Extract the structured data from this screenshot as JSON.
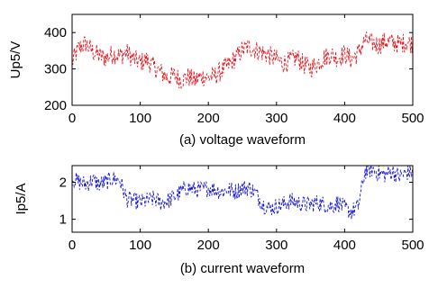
{
  "chart_data": [
    {
      "type": "line",
      "title": "",
      "caption": "(a) voltage waveform",
      "xlabel": "",
      "ylabel": "Up5/V",
      "xlim": [
        0,
        500
      ],
      "ylim": [
        200,
        450
      ],
      "xticks": [
        0,
        100,
        200,
        300,
        400,
        500
      ],
      "yticks": [
        200,
        300,
        400
      ],
      "grid": false,
      "color": "#e8141b",
      "series": [
        {
          "x": [
            0,
            10,
            20,
            30,
            40,
            50,
            60,
            70,
            80,
            90,
            100,
            110,
            120,
            130,
            140,
            150,
            160,
            170,
            180,
            190,
            200,
            210,
            220,
            230,
            240,
            250,
            260,
            270,
            280,
            290,
            300,
            310,
            320,
            330,
            340,
            350,
            360,
            370,
            380,
            390,
            400,
            410,
            420,
            430,
            440,
            450,
            460,
            470,
            480,
            490,
            500
          ],
          "values": [
            318,
            358,
            370,
            348,
            336,
            330,
            342,
            336,
            345,
            328,
            318,
            325,
            305,
            292,
            276,
            282,
            270,
            278,
            268,
            280,
            276,
            282,
            296,
            312,
            330,
            352,
            362,
            352,
            345,
            336,
            326,
            316,
            322,
            332,
            312,
            302,
            315,
            332,
            340,
            330,
            342,
            325,
            345,
            378,
            372,
            366,
            376,
            372,
            368,
            374,
            370
          ]
        }
      ]
    },
    {
      "type": "line",
      "title": "",
      "caption": "(b) current waveform",
      "xlabel": "",
      "ylabel": "Ip5/A",
      "xlim": [
        0,
        500
      ],
      "ylim": [
        0.65,
        2.45
      ],
      "xticks": [
        0,
        100,
        200,
        300,
        400,
        500
      ],
      "yticks": [
        1,
        2
      ],
      "grid": false,
      "color": "#1515d6",
      "series": [
        {
          "x": [
            0,
            10,
            20,
            30,
            40,
            50,
            60,
            70,
            80,
            90,
            100,
            110,
            120,
            130,
            140,
            150,
            160,
            170,
            180,
            190,
            200,
            210,
            220,
            230,
            240,
            250,
            260,
            270,
            280,
            290,
            300,
            310,
            320,
            330,
            340,
            350,
            360,
            370,
            380,
            390,
            400,
            410,
            420,
            430,
            440,
            450,
            460,
            470,
            480,
            490,
            500
          ],
          "values": [
            2.1,
            2.0,
            1.95,
            2.05,
            1.95,
            2.0,
            2.1,
            2.05,
            1.55,
            1.5,
            1.45,
            1.5,
            1.55,
            1.45,
            1.5,
            1.6,
            1.75,
            1.85,
            1.8,
            1.8,
            1.85,
            1.8,
            1.75,
            1.8,
            1.75,
            1.85,
            1.85,
            1.7,
            1.4,
            1.3,
            1.35,
            1.4,
            1.5,
            1.45,
            1.4,
            1.4,
            1.45,
            1.4,
            1.35,
            1.45,
            1.3,
            1.2,
            1.35,
            2.3,
            2.35,
            2.25,
            2.2,
            2.3,
            2.15,
            2.25,
            2.3
          ]
        }
      ]
    }
  ]
}
